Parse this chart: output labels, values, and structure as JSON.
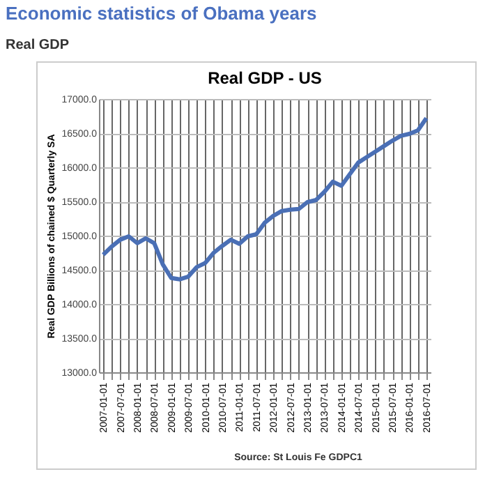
{
  "chart_data": {
    "type": "line",
    "title": "Real GDP - US",
    "ylabel": "Real GDP  Billions of chained $ Quarterly SA",
    "annotations": [
      "Economic statistics of Obama years",
      "Real GDP",
      "Source: St Louis Fe GDPC1"
    ],
    "categories": [
      "2007-01-01",
      null,
      "2007-07-01",
      null,
      "2008-01-01",
      null,
      "2008-07-01",
      null,
      "2009-01-01",
      null,
      "2009-07-01",
      null,
      "2010-01-01",
      null,
      "2010-07-01",
      null,
      "2011-01-01",
      null,
      "2011-07-01",
      null,
      "2012-01-01",
      null,
      "2012-07-01",
      null,
      "2013-01-01",
      null,
      "2013-07-01",
      null,
      "2014-01-01",
      null,
      "2014-07-01",
      null,
      "2015-01-01",
      null,
      "2015-07-01",
      null,
      "2016-01-01",
      null,
      "2016-07-01"
    ],
    "series": [
      {
        "color": "#4a6fb5",
        "values": [
          14720,
          14840,
          14940,
          14990,
          14890,
          14960,
          14890,
          14580,
          14380,
          14360,
          14400,
          14540,
          14600,
          14750,
          14850,
          14940,
          14880,
          14990,
          15020,
          15190,
          15290,
          15360,
          15380,
          15390,
          15490,
          15520,
          15640,
          15790,
          15730,
          15900,
          16070,
          16150,
          16230,
          16310,
          16390,
          16460,
          16490,
          16540,
          16720
        ]
      }
    ],
    "ylim": [
      13000,
      17000
    ],
    "yticks": [
      {
        "value": 13000,
        "label": "13000.0"
      },
      {
        "value": 13500,
        "label": "13500.0"
      },
      {
        "value": 14000,
        "label": "14000.0"
      },
      {
        "value": 14500,
        "label": "14500.0"
      },
      {
        "value": 15000,
        "label": "15000.0"
      },
      {
        "value": 15500,
        "label": "15500.0"
      },
      {
        "value": 16000,
        "label": "16000.0"
      },
      {
        "value": 16500,
        "label": "16500.0"
      },
      {
        "value": 17000,
        "label": "17000.0"
      }
    ],
    "grid": true,
    "marker": "none",
    "line_style": "solid"
  }
}
